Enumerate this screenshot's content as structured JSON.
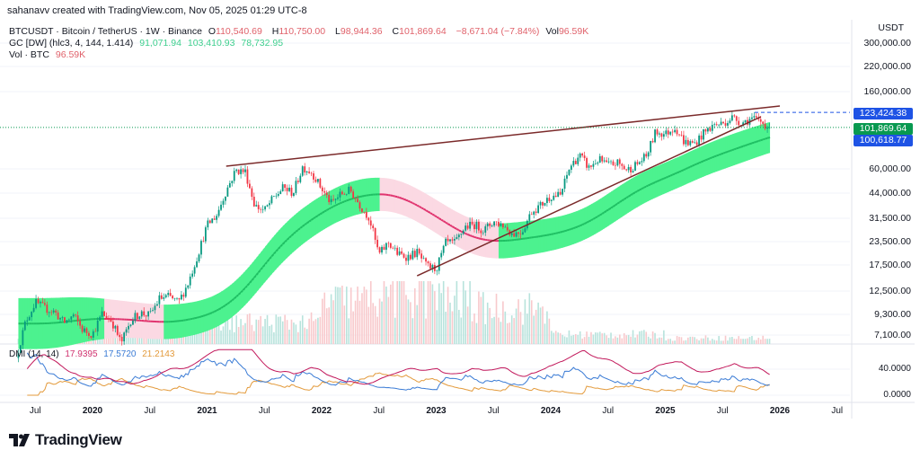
{
  "credit": "sahanavv created with TradingView.com, Nov 05, 2025 01:29 UTC-8",
  "symbol_legend": {
    "title": "BTCUSDT · Bitcoin / TetherUS · 1W · Binance",
    "o_label": "O",
    "o": "110,540.69",
    "h_label": "H",
    "h": "110,750.00",
    "l_label": "L",
    "l": "98,944.36",
    "c_label": "C",
    "c": "101,869.64",
    "change": "−8,671.04 (−7.84%)",
    "vol_label": "Vol",
    "vol": "96.59K"
  },
  "gc_legend": {
    "title": "GC [DW] (hlc3, 4, 144, 1.414)",
    "v1": "91,071.94",
    "v2": "103,410.93",
    "v3": "78,732.95"
  },
  "vol_legend": {
    "title": "Vol · BTC",
    "value": "96.59K"
  },
  "dmi_legend": {
    "title": "DMI (14, 14)",
    "adx": "17.9395",
    "plus_di": "17.5720",
    "minus_di": "21.2143"
  },
  "price_axis": {
    "currency": "USDT",
    "labels": [
      "300,000.00",
      "220,000.00",
      "160,000.00",
      "60,000.00",
      "44,000.00",
      "31,500.00",
      "23,500.00",
      "17,500.00",
      "12,500.00",
      "9,300.00",
      "7,100.00"
    ],
    "tags": [
      {
        "value": "123,424.38",
        "color": "#1e53e5"
      },
      {
        "value": "101,869.64",
        "color": "#089950"
      },
      {
        "value": "100,618.77",
        "color": "#1e53e5"
      }
    ]
  },
  "dmi_axis": {
    "labels": [
      "40.0000",
      "0.0000"
    ]
  },
  "time_axis": [
    "Jul",
    "2020",
    "Jul",
    "2021",
    "Jul",
    "2022",
    "Jul",
    "2023",
    "Jul",
    "2024",
    "Jul",
    "2025",
    "Jul",
    "2026",
    "Jul"
  ],
  "logo": "TradingView",
  "colors": {
    "up": "#089981",
    "down": "#f23645",
    "channel_up": "#4cf28f",
    "channel_down": "#fbd9e3",
    "trendline": "#7b2a2a",
    "adx": "#c2185b",
    "plus_di": "#3a7bd5",
    "minus_di": "#e39a3b"
  },
  "chart_data": {
    "type": "candlestick",
    "scale": "log",
    "interval": "1W",
    "ylim": [
      7100,
      300000
    ],
    "monthly_close_start": "2019-04",
    "monthly_close": [
      5300,
      8500,
      10800,
      10000,
      9600,
      8300,
      9150,
      7550,
      7200,
      9350,
      8550,
      6400,
      8600,
      9450,
      9140,
      11350,
      11650,
      10780,
      13800,
      19700,
      29000,
      33100,
      45200,
      58800,
      57700,
      37300,
      35000,
      41500,
      47100,
      43800,
      61300,
      57000,
      46300,
      38500,
      43200,
      45500,
      37700,
      31800,
      19900,
      23300,
      20050,
      19400,
      20500,
      17150,
      16550,
      23100,
      23150,
      28500,
      29250,
      27200,
      30500,
      29200,
      25950,
      26950,
      34650,
      37700,
      42300,
      42600,
      61200,
      71300,
      60600,
      67500,
      62700,
      64600,
      58900,
      63300,
      70200,
      96400,
      93400,
      102400,
      84300,
      82500,
      94200,
      104600,
      107100,
      115700,
      108200,
      114000,
      109500,
      101869.64
    ],
    "volume_profile_k": {
      "2019": 40,
      "2020": 60,
      "2021": 90,
      "2022": 180,
      "2023": 150,
      "2024": 40,
      "2025": 25
    },
    "horizontal_lines": [
      123424.38,
      101869.64
    ],
    "trendlines": [
      {
        "from": [
          "2021-03",
          62000
        ],
        "to": [
          "2026-01",
          134000
        ]
      },
      {
        "from": [
          "2022-11",
          15200
        ],
        "to": [
          "2025-11",
          116700
        ]
      }
    ],
    "indicators": [
      "Gaussian Channel (hlc3, 4, 144, 1.414)",
      "Volume",
      "DMI (14, 14)"
    ]
  }
}
